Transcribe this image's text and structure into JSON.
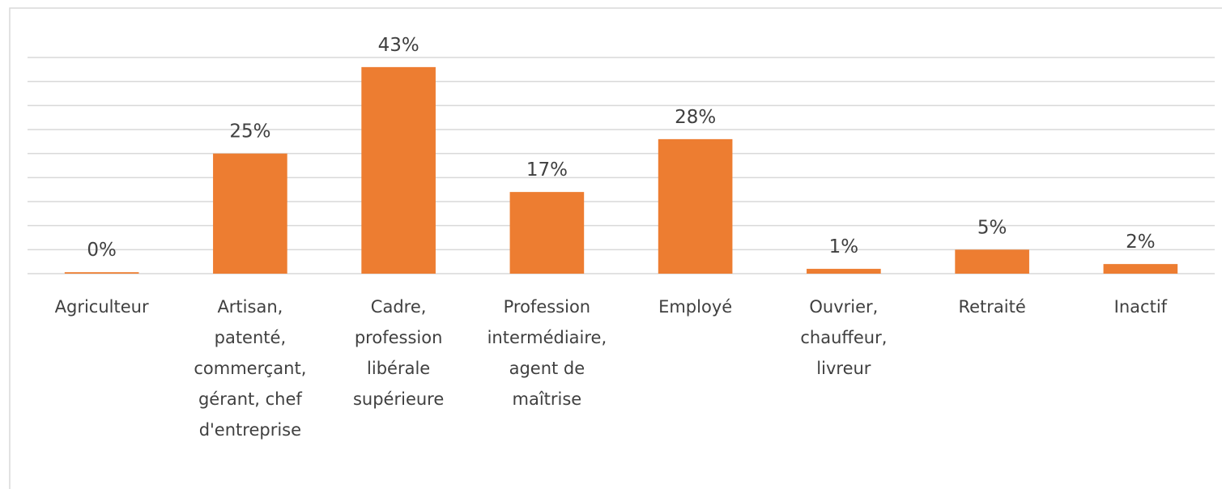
{
  "chart_data": {
    "type": "bar",
    "categories": [
      "Agriculteur",
      "Artisan, patenté, commerçant, gérant, chef d'entreprise",
      "Cadre, profession libérale supérieure",
      "Profession intermédiaire, agent de maîtrise",
      "Employé",
      "Ouvrier, chauffeur, livreur",
      "Retraité",
      "Inactif"
    ],
    "values": [
      0.3,
      25,
      43,
      17,
      28,
      1,
      5,
      2
    ],
    "value_labels": [
      "0%",
      "25%",
      "43%",
      "17%",
      "28%",
      "1%",
      "5%",
      "2%"
    ],
    "color": "#ed7d31",
    "ylim": [
      0,
      45
    ],
    "yticks": [
      0,
      5,
      10,
      15,
      20,
      25,
      30,
      35,
      40,
      45
    ],
    "grid": true
  }
}
